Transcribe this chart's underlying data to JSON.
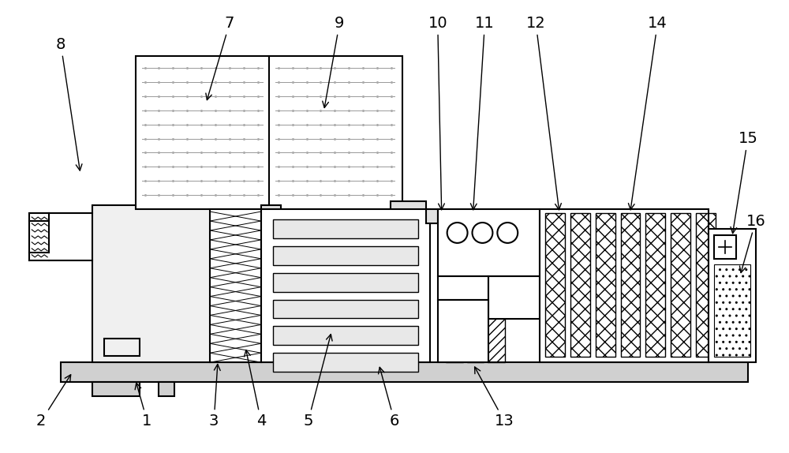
{
  "bg_color": "#ffffff",
  "lc": "#000000",
  "lw": 1.5,
  "fig_w": 10.0,
  "fig_h": 5.74,
  "dpi": 100
}
